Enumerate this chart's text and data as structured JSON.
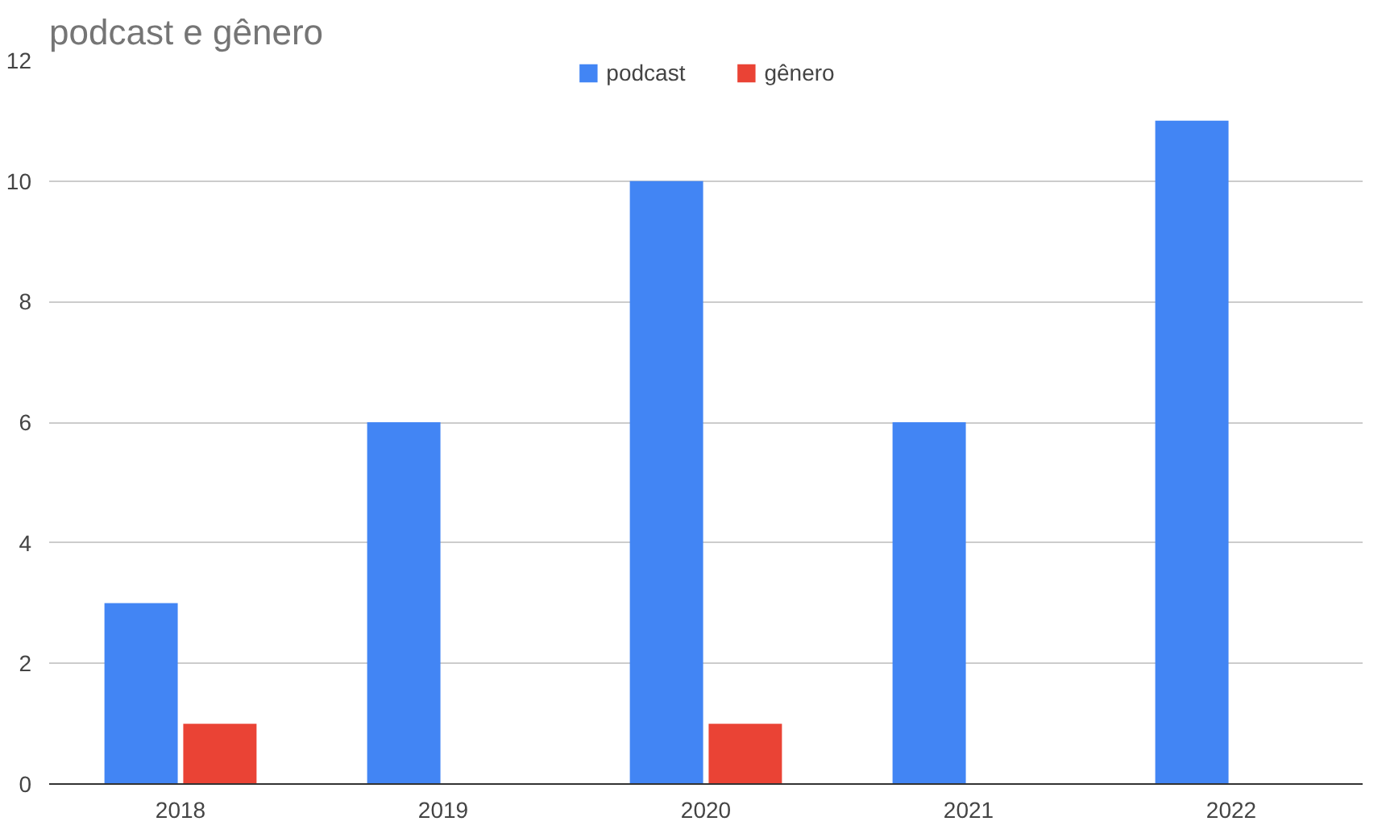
{
  "chart_data": {
    "type": "bar",
    "title": "podcast e gênero",
    "categories": [
      "2018",
      "2019",
      "2020",
      "2021",
      "2022"
    ],
    "series": [
      {
        "name": "podcast",
        "color": "#4285f4",
        "values": [
          3,
          6,
          10,
          6,
          11
        ]
      },
      {
        "name": "gênero",
        "color": "#ea4335",
        "values": [
          1,
          0,
          1,
          0,
          0
        ]
      }
    ],
    "ylim": [
      0,
      12
    ],
    "yticks": [
      0,
      2,
      4,
      6,
      8,
      10,
      12
    ],
    "grid": "y",
    "legend": "top"
  }
}
